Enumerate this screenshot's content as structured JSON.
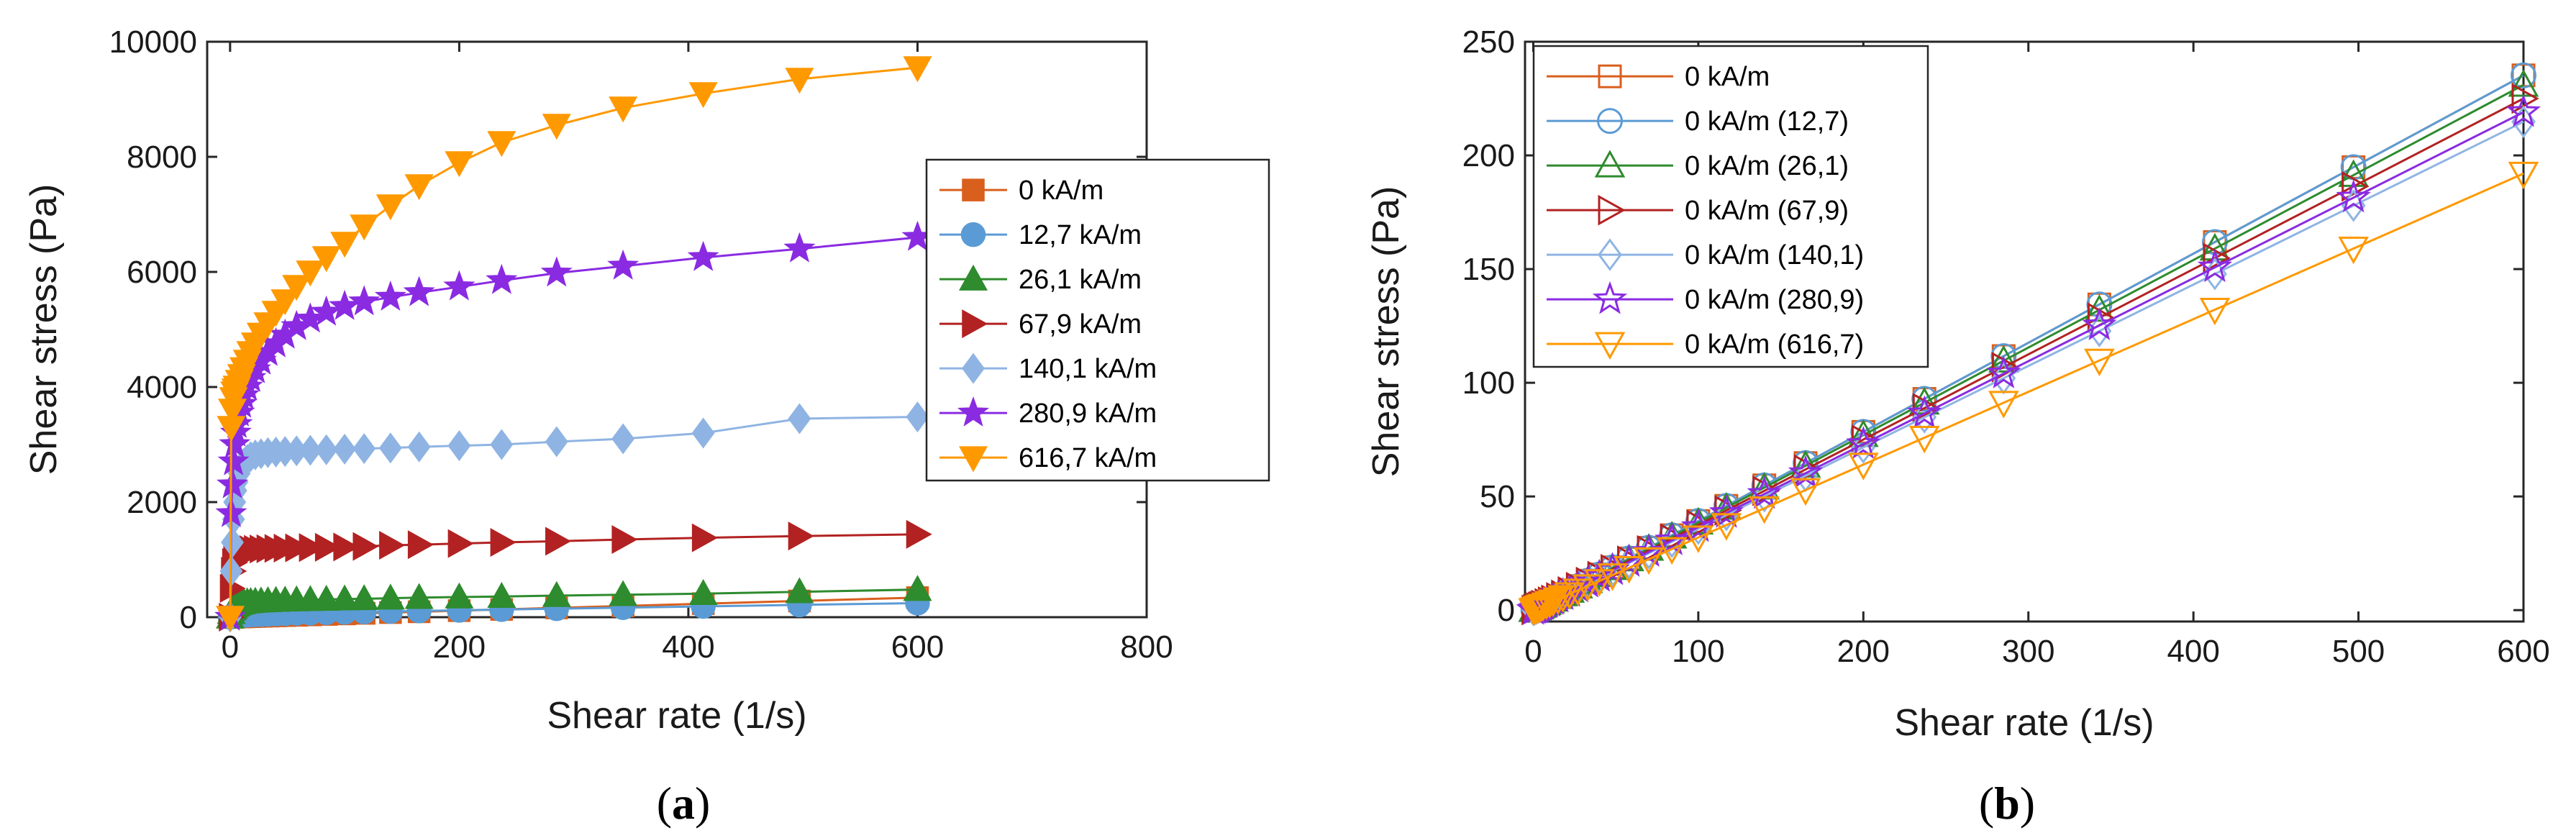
{
  "colors": {
    "0 kA/m": "#d95f1d",
    "12,7": "#5b9bd5",
    "26,1": "#2e8b2e",
    "67,9": "#b22222",
    "140,1": "#8fb4e3",
    "280,9": "#8a2be2",
    "616,7": "#ff9900"
  },
  "captions": {
    "a": {
      "open": "(",
      "letter": "a",
      "close": ")"
    },
    "b": {
      "open": "(",
      "letter": "b",
      "close": ")"
    }
  },
  "chart_data": [
    {
      "id": "a",
      "type": "line",
      "xlabel": "Shear rate (1/s)",
      "ylabel": "Shear stress (Pa)",
      "xlim": [
        -20,
        800
      ],
      "ylim": [
        0,
        10000
      ],
      "xticks": [
        0,
        200,
        400,
        600,
        800
      ],
      "yticks": [
        0,
        2000,
        4000,
        6000,
        8000,
        10000
      ],
      "legend_position": "right-middle",
      "x": [
        0.1,
        1,
        2,
        3,
        4,
        5,
        6,
        8,
        10,
        12,
        15,
        18,
        22,
        27,
        33,
        40,
        48,
        58,
        70,
        84,
        100,
        117,
        140,
        165,
        200,
        237,
        285,
        343,
        413,
        497,
        600
      ],
      "series": [
        {
          "name": "0 kA/m",
          "marker": "square",
          "color_key": "0 kA/m",
          "values": [
            0,
            1,
            2,
            2,
            3,
            3,
            4,
            5,
            6,
            7,
            9,
            11,
            13,
            16,
            19,
            23,
            28,
            33,
            40,
            48,
            57,
            67,
            80,
            94,
            114,
            135,
            162,
            195,
            235,
            282,
            340
          ]
        },
        {
          "name": "12,7 kA/m",
          "marker": "circle",
          "color_key": "12,7",
          "values": [
            0,
            10,
            14,
            18,
            20,
            22,
            24,
            27,
            30,
            33,
            36,
            39,
            43,
            47,
            52,
            56,
            61,
            66,
            72,
            78,
            85,
            92,
            100,
            109,
            120,
            133,
            148,
            166,
            188,
            214,
            245
          ]
        },
        {
          "name": "26,1 kA/m",
          "marker": "triangle-up",
          "color_key": "26,1",
          "values": [
            0,
            80,
            140,
            170,
            200,
            215,
            225,
            240,
            250,
            258,
            265,
            270,
            275,
            280,
            285,
            290,
            295,
            300,
            305,
            310,
            315,
            320,
            330,
            340,
            350,
            360,
            375,
            390,
            410,
            440,
            480
          ]
        },
        {
          "name": "67,9 kA/m",
          "marker": "triangle-right",
          "color_key": "67,9",
          "values": [
            0,
            500,
            800,
            950,
            1050,
            1100,
            1130,
            1150,
            1160,
            1165,
            1170,
            1175,
            1180,
            1185,
            1190,
            1195,
            1200,
            1205,
            1210,
            1215,
            1220,
            1230,
            1250,
            1260,
            1280,
            1300,
            1320,
            1350,
            1380,
            1410,
            1440
          ]
        },
        {
          "name": "140,1 kA/m",
          "marker": "diamond",
          "color_key": "140,1",
          "values": [
            0,
            800,
            1300,
            1700,
            2000,
            2200,
            2350,
            2500,
            2600,
            2680,
            2740,
            2790,
            2820,
            2840,
            2860,
            2870,
            2880,
            2890,
            2900,
            2910,
            2920,
            2930,
            2940,
            2960,
            2980,
            3000,
            3050,
            3100,
            3200,
            3450,
            3480
          ]
        },
        {
          "name": "280,9 kA/m",
          "marker": "star",
          "color_key": "280,9",
          "values": [
            0,
            1800,
            2300,
            2700,
            3000,
            3200,
            3350,
            3550,
            3700,
            3850,
            4000,
            4150,
            4300,
            4450,
            4600,
            4750,
            4900,
            5050,
            5180,
            5300,
            5400,
            5480,
            5560,
            5640,
            5740,
            5850,
            5980,
            6100,
            6250,
            6400,
            6600
          ]
        },
        {
          "name": "616,7 kA/m",
          "marker": "triangle-down",
          "color_key": "616,7",
          "values": [
            0,
            3300,
            3600,
            3800,
            3900,
            3950,
            4000,
            4100,
            4200,
            4320,
            4450,
            4600,
            4750,
            4920,
            5100,
            5300,
            5500,
            5750,
            6000,
            6250,
            6500,
            6800,
            7150,
            7500,
            7900,
            8250,
            8550,
            8850,
            9100,
            9350,
            9550
          ]
        }
      ]
    },
    {
      "id": "b",
      "type": "line",
      "xlabel": "Shear rate (1/s)",
      "ylabel": "Shear stress (Pa)",
      "xlim": [
        -5,
        600
      ],
      "ylim": [
        -5,
        250
      ],
      "xticks": [
        0,
        100,
        200,
        300,
        400,
        500,
        600
      ],
      "yticks": [
        0,
        50,
        100,
        150,
        200,
        250
      ],
      "legend_position": "top-left",
      "x": [
        0.1,
        1,
        2,
        3,
        4,
        5,
        6,
        8,
        10,
        12,
        15,
        18,
        22,
        27,
        33,
        40,
        48,
        58,
        70,
        84,
        100,
        117,
        140,
        165,
        200,
        237,
        285,
        343,
        413,
        497,
        600
      ],
      "series": [
        {
          "name": "0 kA/m",
          "marker": "square-open",
          "color_key": "0 kA/m",
          "slope": 0.392
        },
        {
          "name": "0 kA/m (12,7)",
          "marker": "circle-open",
          "color_key": "12,7",
          "slope": 0.392
        },
        {
          "name": "0 kA/m (26,1)",
          "marker": "triangle-up-open",
          "color_key": "26,1",
          "slope": 0.385
        },
        {
          "name": "0 kA/m (67,9)",
          "marker": "triangle-right-open",
          "color_key": "67,9",
          "slope": 0.375
        },
        {
          "name": "0 kA/m (140,1)",
          "marker": "diamond-open",
          "color_key": "140,1",
          "slope": 0.358
        },
        {
          "name": "0 kA/m (280,9)",
          "marker": "star-open",
          "color_key": "280,9",
          "slope": 0.365
        },
        {
          "name": "0 kA/m (616,7)",
          "marker": "triangle-down-open",
          "color_key": "616,7",
          "slope": 0.32
        }
      ]
    }
  ]
}
